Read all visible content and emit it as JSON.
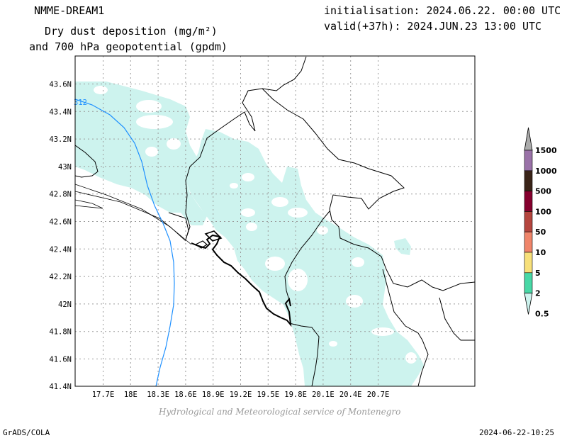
{
  "header": {
    "model": "NMME-DREAM1",
    "title_line1": "Dry dust deposition (mg/m²)",
    "title_line2": "and 700 hPa geopotential (gpdm)",
    "init": "initialisation: 2024.06.22. 00:00 UTC",
    "valid": "valid(+37h): 2024.JUN.23 13:00 UTC"
  },
  "map": {
    "lon_ticks": [
      "17.7E",
      "18E",
      "18.3E",
      "18.6E",
      "18.9E",
      "19.2E",
      "19.5E",
      "19.8E",
      "20.1E",
      "20.4E",
      "20.7E"
    ],
    "lat_ticks": [
      "43.6N",
      "43.4N",
      "43.2N",
      "43N",
      "42.8N",
      "42.6N",
      "42.4N",
      "42.2N",
      "42N",
      "41.8N",
      "41.6N",
      "41.4N"
    ],
    "contour_label": "312",
    "grid": true
  },
  "colorbar": {
    "levels": [
      "1500",
      "1000",
      "500",
      "100",
      "50",
      "10",
      "5",
      "2",
      "0.5"
    ],
    "colors": [
      "#ababab",
      "#9a72a8",
      "#3a2418",
      "#85002e",
      "#b5453e",
      "#f0856a",
      "#f7e07a",
      "#48d8a6",
      "#cdf3ee"
    ]
  },
  "footer": {
    "credit": "Hydrological and Meteorological service of Montenegro",
    "software": "GrADS/COLA",
    "timestamp": "2024-06-22-10:25"
  }
}
